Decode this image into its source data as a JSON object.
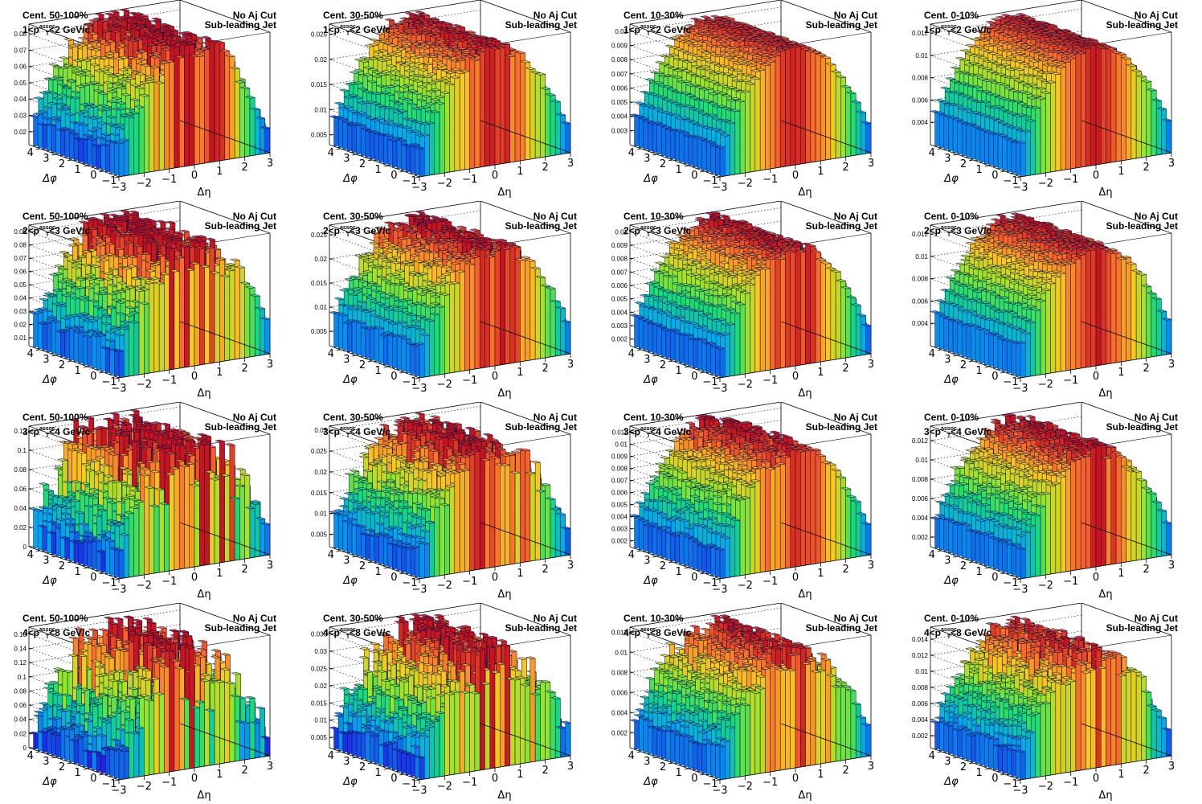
{
  "chart_data": [
    {
      "row": 0,
      "col": 0,
      "type": "lego3d",
      "centrality": "Cent. 50-100%",
      "pt_range": "1<p",
      "pt_sup": "assoc.",
      "pt_sub": "T",
      "pt_tail": "<2 GeV/c",
      "aj_cut": "No Aj Cut",
      "jet_label": "Sub-leading Jet",
      "xlabel": "Δη",
      "ylabel": "Δφ",
      "x_ticks": [
        "−3",
        "−2",
        "−1",
        "0",
        "1",
        "2",
        "3"
      ],
      "y_ticks": [
        "−1",
        "0",
        "1",
        "2",
        "3",
        "4"
      ],
      "z_ticks": [
        "0.02",
        "0.03",
        "0.04",
        "0.05",
        "0.06",
        "0.07",
        "0.08"
      ],
      "zlim": [
        0.012,
        0.086
      ],
      "peak": 0.083,
      "edge": 0.015,
      "noise": 0.12
    },
    {
      "row": 0,
      "col": 1,
      "type": "lego3d",
      "centrality": "Cent. 30-50%",
      "pt_range": "1<p",
      "pt_sup": "assoc.",
      "pt_sub": "T",
      "pt_tail": "<2 GeV/c",
      "aj_cut": "No Aj Cut",
      "jet_label": "Sub-leading Jet",
      "xlabel": "Δη",
      "ylabel": "Δφ",
      "x_ticks": [
        "−3",
        "−2",
        "−1",
        "0",
        "1",
        "2",
        "3"
      ],
      "y_ticks": [
        "−1",
        "0",
        "1",
        "2",
        "3",
        "4"
      ],
      "z_ticks": [
        "0.005",
        "0.01",
        "0.015",
        "0.02",
        "0.025"
      ],
      "zlim": [
        0.003,
        0.027
      ],
      "peak": 0.026,
      "edge": 0.004,
      "noise": 0.05
    },
    {
      "row": 0,
      "col": 2,
      "type": "lego3d",
      "centrality": "Cent. 10-30%",
      "pt_range": "1<p",
      "pt_sup": "assoc.",
      "pt_sub": "T",
      "pt_tail": "<2 GeV/c",
      "aj_cut": "No Aj Cut",
      "jet_label": "Sub-leading Jet",
      "xlabel": "Δη",
      "ylabel": "Δφ",
      "x_ticks": [
        "−3",
        "−2",
        "−1",
        "0",
        "1",
        "2",
        "3"
      ],
      "y_ticks": [
        "−1",
        "0",
        "1",
        "2",
        "3",
        "4"
      ],
      "z_ticks": [
        "0.003",
        "0.004",
        "0.005",
        "0.006",
        "0.007",
        "0.008",
        "0.009",
        "0.01"
      ],
      "zlim": [
        0.002,
        0.0105
      ],
      "peak": 0.0102,
      "edge": 0.0025,
      "noise": 0.02
    },
    {
      "row": 0,
      "col": 3,
      "type": "lego3d",
      "centrality": "Cent. 0-10%",
      "pt_range": "1<p",
      "pt_sup": "assoc.",
      "pt_sub": "T",
      "pt_tail": "<2 GeV/c",
      "aj_cut": "No Aj Cut",
      "jet_label": "Sub-leading Jet",
      "xlabel": "Δη",
      "ylabel": "Δφ",
      "x_ticks": [
        "−3",
        "−2",
        "−1",
        "0",
        "1",
        "2",
        "3"
      ],
      "y_ticks": [
        "−1",
        "0",
        "1",
        "2",
        "3",
        "4"
      ],
      "z_ticks": [
        "0.004",
        "0.006",
        "0.008",
        "0.01",
        "0.012"
      ],
      "zlim": [
        0.002,
        0.0128
      ],
      "peak": 0.0125,
      "edge": 0.003,
      "noise": 0.02
    },
    {
      "row": 1,
      "col": 0,
      "type": "lego3d",
      "centrality": "Cent. 50-100%",
      "pt_range": "2<p",
      "pt_sup": "assoc.",
      "pt_sub": "T",
      "pt_tail": "<3 GeV/c",
      "aj_cut": "No Aj Cut",
      "jet_label": "Sub-leading Jet",
      "xlabel": "Δη",
      "ylabel": "Δφ",
      "x_ticks": [
        "−3",
        "−2",
        "−1",
        "0",
        "1",
        "2",
        "3"
      ],
      "y_ticks": [
        "−1",
        "0",
        "1",
        "2",
        "3",
        "4"
      ],
      "z_ticks": [
        "0.01",
        "0.02",
        "0.03",
        "0.04",
        "0.05",
        "0.06",
        "0.07",
        "0.08",
        "0.09"
      ],
      "zlim": [
        0.004,
        0.095
      ],
      "peak": 0.09,
      "edge": 0.01,
      "noise": 0.18
    },
    {
      "row": 1,
      "col": 1,
      "type": "lego3d",
      "centrality": "Cent. 30-50%",
      "pt_range": "2<p",
      "pt_sup": "assoc.",
      "pt_sub": "T",
      "pt_tail": "<3 GeV/c",
      "aj_cut": "No Aj Cut",
      "jet_label": "Sub-leading Jet",
      "xlabel": "Δη",
      "ylabel": "Δφ",
      "x_ticks": [
        "−3",
        "−2",
        "−1",
        "0",
        "1",
        "2",
        "3"
      ],
      "y_ticks": [
        "−1",
        "0",
        "1",
        "2",
        "3",
        "4"
      ],
      "z_ticks": [
        "0.005",
        "0.01",
        "0.015",
        "0.02",
        "0.025"
      ],
      "zlim": [
        0.002,
        0.027
      ],
      "peak": 0.026,
      "edge": 0.004,
      "noise": 0.08
    },
    {
      "row": 1,
      "col": 2,
      "type": "lego3d",
      "centrality": "Cent. 10-30%",
      "pt_range": "2<p",
      "pt_sup": "assoc.",
      "pt_sub": "T",
      "pt_tail": "<3 GeV/c",
      "aj_cut": "No Aj Cut",
      "jet_label": "Sub-leading Jet",
      "xlabel": "Δη",
      "ylabel": "Δφ",
      "x_ticks": [
        "−3",
        "−2",
        "−1",
        "0",
        "1",
        "2",
        "3"
      ],
      "y_ticks": [
        "−1",
        "0",
        "1",
        "2",
        "3",
        "4"
      ],
      "z_ticks": [
        "0.002",
        "0.003",
        "0.004",
        "0.005",
        "0.006",
        "0.007",
        "0.008",
        "0.009",
        "0.01"
      ],
      "zlim": [
        0.0015,
        0.0105
      ],
      "peak": 0.0102,
      "edge": 0.002,
      "noise": 0.04
    },
    {
      "row": 1,
      "col": 3,
      "type": "lego3d",
      "centrality": "Cent. 0-10%",
      "pt_range": "2<p",
      "pt_sup": "assoc.",
      "pt_sub": "T",
      "pt_tail": "<3 GeV/c",
      "aj_cut": "No Aj Cut",
      "jet_label": "Sub-leading Jet",
      "xlabel": "Δη",
      "ylabel": "Δφ",
      "x_ticks": [
        "−3",
        "−2",
        "−1",
        "0",
        "1",
        "2",
        "3"
      ],
      "y_ticks": [
        "−1",
        "0",
        "1",
        "2",
        "3",
        "4"
      ],
      "z_ticks": [
        "0.004",
        "0.006",
        "0.008",
        "0.01",
        "0.012"
      ],
      "zlim": [
        0.002,
        0.0128
      ],
      "peak": 0.0125,
      "edge": 0.003,
      "noise": 0.03
    },
    {
      "row": 2,
      "col": 0,
      "type": "lego3d",
      "centrality": "Cent. 50-100%",
      "pt_range": "3<p",
      "pt_sup": "assoc.",
      "pt_sub": "T",
      "pt_tail": "<4 GeV/c",
      "aj_cut": "No Aj Cut",
      "jet_label": "Sub-leading Jet",
      "xlabel": "Δη",
      "ylabel": "Δφ",
      "x_ticks": [
        "−3",
        "−2",
        "−1",
        "0",
        "1",
        "2",
        "3"
      ],
      "y_ticks": [
        "−1",
        "0",
        "1",
        "2",
        "3",
        "4"
      ],
      "z_ticks": [
        "0",
        "0.02",
        "0.04",
        "0.06",
        "0.08",
        "0.1",
        "0.12"
      ],
      "zlim": [
        0,
        0.125
      ],
      "peak": 0.11,
      "edge": 0.01,
      "noise": 0.35
    },
    {
      "row": 2,
      "col": 1,
      "type": "lego3d",
      "centrality": "Cent. 30-50%",
      "pt_range": "3<p",
      "pt_sup": "assoc.",
      "pt_sub": "T",
      "pt_tail": "<4 GeV/c",
      "aj_cut": "No Aj Cut",
      "jet_label": "Sub-leading Jet",
      "xlabel": "Δη",
      "ylabel": "Δφ",
      "x_ticks": [
        "−3",
        "−2",
        "−1",
        "0",
        "1",
        "2",
        "3"
      ],
      "y_ticks": [
        "−1",
        "0",
        "1",
        "2",
        "3",
        "4"
      ],
      "z_ticks": [
        "0.005",
        "0.01",
        "0.015",
        "0.02",
        "0.025",
        "0.03"
      ],
      "zlim": [
        0.002,
        0.031
      ],
      "peak": 0.029,
      "edge": 0.004,
      "noise": 0.15
    },
    {
      "row": 2,
      "col": 2,
      "type": "lego3d",
      "centrality": "Cent. 10-30%",
      "pt_range": "3<p",
      "pt_sup": "assoc.",
      "pt_sub": "T",
      "pt_tail": "<4 GeV/c",
      "aj_cut": "No Aj Cut",
      "jet_label": "Sub-leading Jet",
      "xlabel": "Δη",
      "ylabel": "Δφ",
      "x_ticks": [
        "−3",
        "−2",
        "−1",
        "0",
        "1",
        "2",
        "3"
      ],
      "y_ticks": [
        "−1",
        "0",
        "1",
        "2",
        "3",
        "4"
      ],
      "z_ticks": [
        "0.002",
        "0.003",
        "0.004",
        "0.005",
        "0.006",
        "0.007",
        "0.008",
        "0.009",
        "0.01",
        "0.011"
      ],
      "zlim": [
        0.0015,
        0.0115
      ],
      "peak": 0.011,
      "edge": 0.002,
      "noise": 0.07
    },
    {
      "row": 2,
      "col": 3,
      "type": "lego3d",
      "centrality": "Cent. 0-10%",
      "pt_range": "3<p",
      "pt_sup": "assoc.",
      "pt_sub": "T",
      "pt_tail": "<4 GeV/c",
      "aj_cut": "No Aj Cut",
      "jet_label": "Sub-leading Jet",
      "xlabel": "Δη",
      "ylabel": "Δφ",
      "x_ticks": [
        "−3",
        "−2",
        "−1",
        "0",
        "1",
        "2",
        "3"
      ],
      "y_ticks": [
        "−1",
        "0",
        "1",
        "2",
        "3",
        "4"
      ],
      "z_ticks": [
        "0.002",
        "0.004",
        "0.006",
        "0.008",
        "0.01",
        "0.012"
      ],
      "zlim": [
        0.001,
        0.0135
      ],
      "peak": 0.013,
      "edge": 0.002,
      "noise": 0.06
    },
    {
      "row": 3,
      "col": 0,
      "type": "lego3d",
      "centrality": "Cent. 50-100%",
      "pt_range": "4<p",
      "pt_sup": "assoc.",
      "pt_sub": "T",
      "pt_tail": "<8 GeV/c",
      "aj_cut": "No Aj Cut",
      "jet_label": "Sub-leading Jet",
      "xlabel": "Δη",
      "ylabel": "Δφ",
      "x_ticks": [
        "−3",
        "−2",
        "−1",
        "0",
        "1",
        "2",
        "3"
      ],
      "y_ticks": [
        "−1",
        "0",
        "1",
        "2",
        "3",
        "4"
      ],
      "z_ticks": [
        "0",
        "0.02",
        "0.04",
        "0.06",
        "0.08",
        "0.1",
        "0.12",
        "0.14",
        "0.16"
      ],
      "zlim": [
        0,
        0.17
      ],
      "peak": 0.13,
      "edge": 0.01,
      "noise": 0.45
    },
    {
      "row": 3,
      "col": 1,
      "type": "lego3d",
      "centrality": "Cent. 30-50%",
      "pt_range": "4<p",
      "pt_sup": "assoc.",
      "pt_sub": "T",
      "pt_tail": "<8 GeV/c",
      "aj_cut": "No Aj Cut",
      "jet_label": "Sub-leading Jet",
      "xlabel": "Δη",
      "ylabel": "Δφ",
      "x_ticks": [
        "−3",
        "−2",
        "−1",
        "0",
        "1",
        "2",
        "3"
      ],
      "y_ticks": [
        "−1",
        "0",
        "1",
        "2",
        "3",
        "4"
      ],
      "z_ticks": [
        "0.005",
        "0.01",
        "0.015",
        "0.02",
        "0.025",
        "0.03",
        "0.035"
      ],
      "zlim": [
        0.002,
        0.037
      ],
      "peak": 0.032,
      "edge": 0.004,
      "noise": 0.25
    },
    {
      "row": 3,
      "col": 2,
      "type": "lego3d",
      "centrality": "Cent. 10-30%",
      "pt_range": "4<p",
      "pt_sup": "assoc.",
      "pt_sub": "T",
      "pt_tail": "<8 GeV/c",
      "aj_cut": "No Aj Cut",
      "jet_label": "Sub-leading Jet",
      "xlabel": "Δη",
      "ylabel": "Δφ",
      "x_ticks": [
        "−3",
        "−2",
        "−1",
        "0",
        "1",
        "2",
        "3"
      ],
      "y_ticks": [
        "−1",
        "0",
        "1",
        "2",
        "3",
        "4"
      ],
      "z_ticks": [
        "0.002",
        "0.004",
        "0.006",
        "0.008",
        "0.01",
        "0.012"
      ],
      "zlim": [
        0.0005,
        0.0125
      ],
      "peak": 0.0115,
      "edge": 0.0015,
      "noise": 0.12
    },
    {
      "row": 3,
      "col": 3,
      "type": "lego3d",
      "centrality": "Cent. 0-10%",
      "pt_range": "4<p",
      "pt_sup": "assoc.",
      "pt_sub": "T",
      "pt_tail": "<8 GeV/c",
      "aj_cut": "No Aj Cut",
      "jet_label": "Sub-leading Jet",
      "xlabel": "Δη",
      "ylabel": "Δφ",
      "x_ticks": [
        "−3",
        "−2",
        "−1",
        "0",
        "1",
        "2",
        "3"
      ],
      "y_ticks": [
        "−1",
        "0",
        "1",
        "2",
        "3",
        "4"
      ],
      "z_ticks": [
        "0.002",
        "0.004",
        "0.006",
        "0.008",
        "0.01",
        "0.012",
        "0.014"
      ],
      "zlim": [
        0.0005,
        0.0155
      ],
      "peak": 0.014,
      "edge": 0.0015,
      "noise": 0.12
    }
  ]
}
